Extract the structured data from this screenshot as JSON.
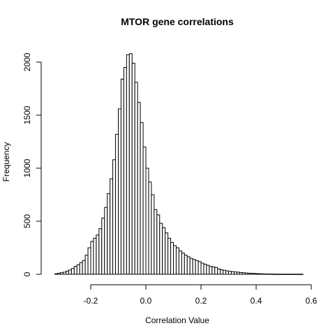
{
  "chart_data": {
    "type": "bar",
    "title": "MTOR gene correlations",
    "xlabel": "Correlation Value",
    "ylabel": "Frequency",
    "xlim": [
      -0.35,
      0.6
    ],
    "ylim": [
      0,
      2100
    ],
    "bin_width": 0.01,
    "bin_start": -0.33,
    "x_ticks": [
      -0.2,
      0.0,
      0.2,
      0.4,
      0.6
    ],
    "x_tick_labels": [
      "-0.2",
      "0.0",
      "0.2",
      "0.4",
      "0.6"
    ],
    "y_ticks": [
      0,
      500,
      1000,
      1500,
      2000
    ],
    "y_tick_labels": [
      "0",
      "500",
      "1000",
      "1500",
      "2000"
    ],
    "grid": false,
    "values": [
      5,
      10,
      15,
      20,
      30,
      40,
      55,
      75,
      90,
      110,
      130,
      180,
      250,
      310,
      340,
      370,
      430,
      530,
      630,
      760,
      900,
      1080,
      1320,
      1560,
      1840,
      1950,
      2070,
      2080,
      1990,
      1810,
      1620,
      1430,
      1200,
      1000,
      870,
      750,
      610,
      560,
      480,
      440,
      390,
      340,
      300,
      270,
      250,
      220,
      200,
      180,
      165,
      150,
      140,
      130,
      120,
      105,
      95,
      85,
      75,
      70,
      65,
      50,
      42,
      38,
      32,
      28,
      25,
      22,
      20,
      17,
      15,
      12,
      10,
      9,
      8,
      6,
      5,
      4,
      3,
      3,
      2,
      2,
      1,
      1,
      1,
      1,
      1,
      1,
      1,
      1,
      1,
      1
    ]
  }
}
